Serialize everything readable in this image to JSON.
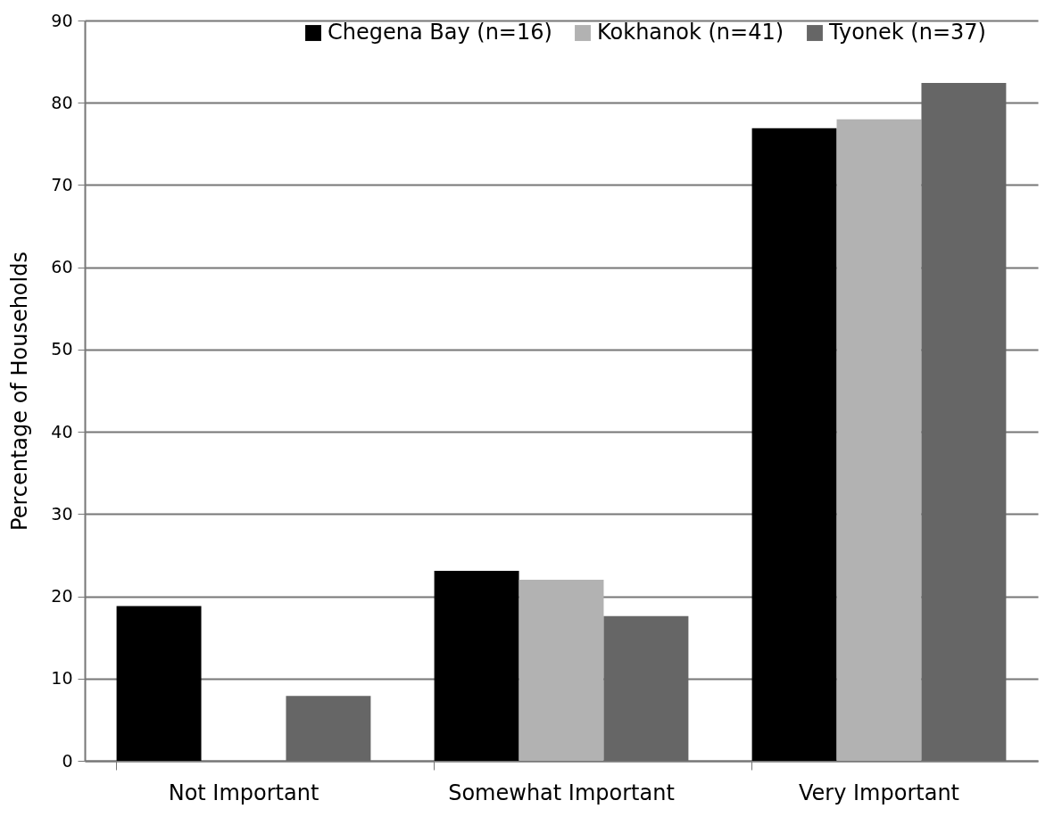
{
  "chart_data": {
    "type": "bar",
    "ylabel": "Percentage of Households",
    "categories": [
      "Not Important",
      "Somewhat Important",
      "Very Important"
    ],
    "series": [
      {
        "name": "Chegena Bay (n=16)",
        "color": "#000000",
        "values": [
          18.8,
          23.1,
          76.9
        ]
      },
      {
        "name": "Kokhanok (n=41)",
        "color": "#b2b2b2",
        "values": [
          0,
          22.0,
          78.0
        ]
      },
      {
        "name": "Tyonek (n=37)",
        "color": "#666666",
        "values": [
          7.9,
          17.6,
          82.4
        ]
      }
    ],
    "ylim": [
      0,
      90
    ],
    "yticks": [
      0,
      10,
      20,
      30,
      40,
      50,
      60,
      70,
      80,
      90
    ],
    "grid": "y",
    "legend": "top"
  }
}
